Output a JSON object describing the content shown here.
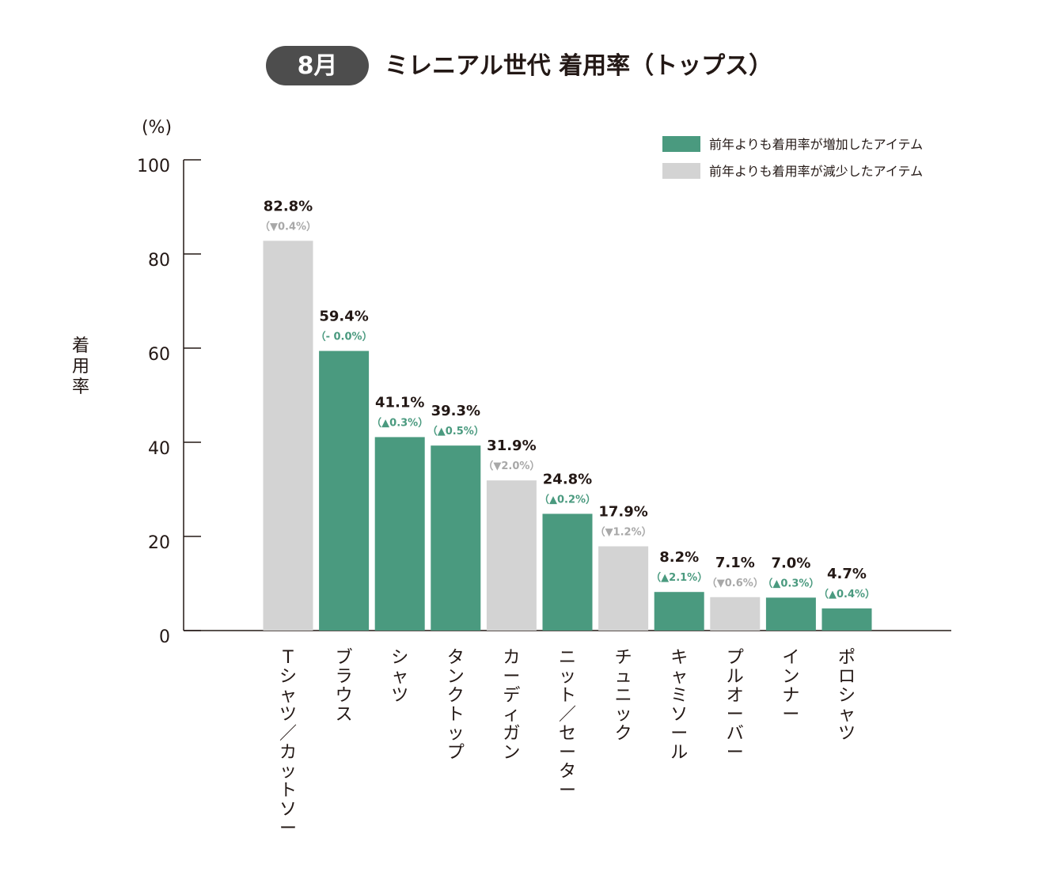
{
  "header": {
    "month_badge": "8月",
    "title": "ミレニアル世代 着用率（トップス）"
  },
  "colors": {
    "increase": "#4a9a7f",
    "decrease": "#d3d3d3",
    "badge": "#4d4d4d",
    "increase_label": "#4a9a7f",
    "decrease_label": "#a8a8a8"
  },
  "legend": [
    {
      "label": "前年よりも着用率が増加したアイテム",
      "trend": "up"
    },
    {
      "label": "前年よりも着用率が減少したアイテム",
      "trend": "down"
    }
  ],
  "chart_data": {
    "type": "bar",
    "title": "ミレニアル世代 着用率（トップス）",
    "ylabel": "着用率",
    "yunit": "(%)",
    "ylim": [
      0,
      100
    ],
    "yticks": [
      0,
      20,
      40,
      60,
      80,
      100
    ],
    "categories": [
      "Tシャツ／カットソー",
      "ブラウス",
      "シャツ",
      "タンクトップ",
      "カーディガン",
      "ニット／セーター",
      "チュニック",
      "キャミソール",
      "プルオーバー",
      "インナー",
      "ポロシャツ"
    ],
    "values": [
      82.8,
      59.4,
      41.1,
      39.3,
      31.9,
      24.8,
      17.9,
      8.2,
      7.1,
      7.0,
      4.7
    ],
    "value_labels": [
      "82.8%",
      "59.4%",
      "41.1%",
      "39.3%",
      "31.9%",
      "24.8%",
      "17.9%",
      "8.2%",
      "7.1%",
      "7.0%",
      "4.7%"
    ],
    "change_labels": [
      "（▼0.4%）",
      "（- 0.0%）",
      "（▲0.3%）",
      "（▲0.5%）",
      "（▼2.0%）",
      "（▲0.2%）",
      "（▼1.2%）",
      "（▲2.1%）",
      "（▼0.6%）",
      "（▲0.3%）",
      "（▲0.4%）"
    ],
    "trend": [
      "down",
      "up",
      "up",
      "up",
      "down",
      "up",
      "down",
      "up",
      "down",
      "up",
      "up"
    ],
    "legend_position": "top-right",
    "grid": false
  }
}
